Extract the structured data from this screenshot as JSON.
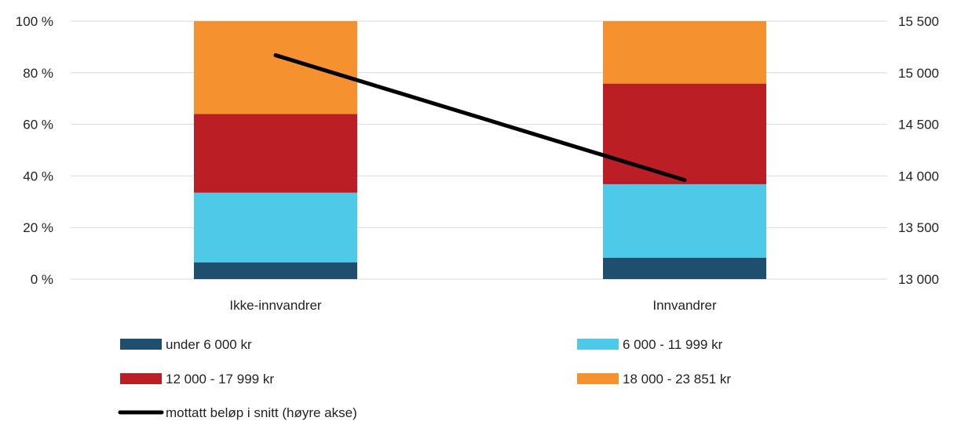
{
  "chart_data": {
    "type": "bar",
    "stacked": true,
    "categories": [
      "Ikke-innvandrer",
      "Innvandrer"
    ],
    "series": [
      {
        "name": "under 6 000 kr",
        "values": [
          6.5,
          8.3
        ],
        "color": "#1f4e6e"
      },
      {
        "name": "6 000 - 11 999 kr",
        "values": [
          27.0,
          28.5
        ],
        "color": "#4ec9e8"
      },
      {
        "name": "12 000 - 17 999 kr",
        "values": [
          30.5,
          39.0
        ],
        "color": "#bb1e24"
      },
      {
        "name": "18 000 - 23 851 kr",
        "values": [
          36.0,
          24.2
        ],
        "color": "#f5922f"
      }
    ],
    "line_series": {
      "name": "mottatt beløp i snitt (høyre akse)",
      "axis": "right",
      "values": [
        15170,
        13960
      ],
      "color": "#000000"
    },
    "y_left": {
      "ylim": [
        0,
        100
      ],
      "ticks": [
        0,
        20,
        40,
        60,
        80,
        100
      ],
      "tick_labels": [
        "0 %",
        "20 %",
        "40 %",
        "60 %",
        "80 %",
        "100 %"
      ]
    },
    "y_right": {
      "ylim": [
        13000,
        15500
      ],
      "ticks": [
        13000,
        13500,
        14000,
        14500,
        15000,
        15500
      ],
      "tick_labels": [
        "13 000",
        "13 500",
        "14 000",
        "14 500",
        "15 000",
        "15 500"
      ]
    },
    "grid": true,
    "legend_position": "bottom",
    "xlabel": "",
    "ylabel": "",
    "title": ""
  }
}
